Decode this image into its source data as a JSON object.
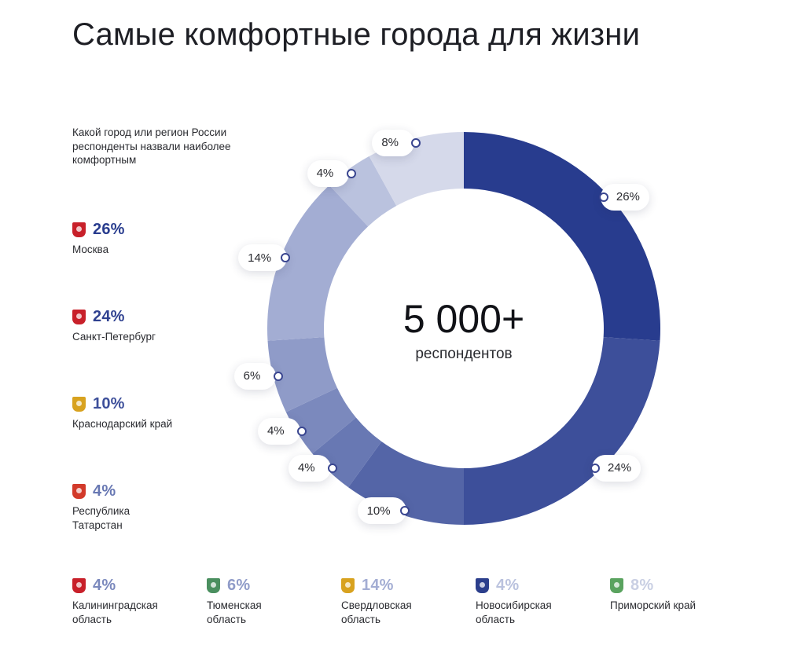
{
  "title": "Самые комфортные города для жизни",
  "subtitle": "Какой город или регион России респонденты назвали наиболее комфортным",
  "center": {
    "value": "5 000+",
    "label": "респондентов"
  },
  "chart_data": {
    "type": "pie",
    "title": "Самые комфортные города для жизни",
    "unit": "%",
    "donut": true,
    "slices": [
      {
        "label": "Москва",
        "value": 26,
        "display": "26%",
        "color": "#283c8e"
      },
      {
        "label": "Санкт-Петербург",
        "value": 24,
        "display": "24%",
        "color": "#3d4f9a"
      },
      {
        "label": "Краснодарский край",
        "value": 10,
        "display": "10%",
        "color": "#5465a7"
      },
      {
        "label": "Республика Татарстан",
        "value": 4,
        "display": "4%",
        "color": "#6878b3"
      },
      {
        "label": "Калининградская область",
        "value": 4,
        "display": "4%",
        "color": "#7b89bd"
      },
      {
        "label": "Тюменская область",
        "value": 6,
        "display": "6%",
        "color": "#8f9bc8"
      },
      {
        "label": "Свердловская область",
        "value": 14,
        "display": "14%",
        "color": "#a3add3"
      },
      {
        "label": "Новосибирская область",
        "value": 4,
        "display": "4%",
        "color": "#bac2de"
      },
      {
        "label": "Приморский край",
        "value": 8,
        "display": "8%",
        "color": "#d5d9ea"
      }
    ]
  },
  "legend": [
    {
      "pct": "26%",
      "label": "Москва",
      "color": "#283c8e",
      "icon": "moscow-emblem-icon",
      "icon_color": "#c8202a"
    },
    {
      "pct": "24%",
      "label": "Санкт-Петербург",
      "color": "#2f4190",
      "icon": "spb-emblem-icon",
      "icon_color": "#c8202a"
    },
    {
      "pct": "10%",
      "label": "Краснодарский край",
      "color": "#3d4f9a",
      "icon": "krasnodar-emblem-icon",
      "icon_color": "#d8a21f"
    },
    {
      "pct": "4%",
      "label": "Республика Татарстан",
      "color": "#6878b3",
      "icon": "tatarstan-emblem-icon",
      "icon_color": "#d23a2a"
    },
    {
      "pct": "4%",
      "label": "Калининградская область",
      "color": "#7b89bd",
      "icon": "kaliningrad-emblem-icon",
      "icon_color": "#c8202a"
    },
    {
      "pct": "6%",
      "label": "Тюменская область",
      "color": "#8f9bc8",
      "icon": "tyumen-emblem-icon",
      "icon_color": "#4a8f5f"
    },
    {
      "pct": "14%",
      "label": "Свердловская область",
      "color": "#a3add3",
      "icon": "sverdlovsk-emblem-icon",
      "icon_color": "#d8a21f"
    },
    {
      "pct": "4%",
      "label": "Новосибирская область",
      "color": "#bac2de",
      "icon": "novosibirsk-emblem-icon",
      "icon_color": "#2c3f8c"
    },
    {
      "pct": "8%",
      "label": "Приморский край",
      "color": "#c9cfe3",
      "icon": "primorsky-emblem-icon",
      "icon_color": "#5aa35f"
    }
  ]
}
